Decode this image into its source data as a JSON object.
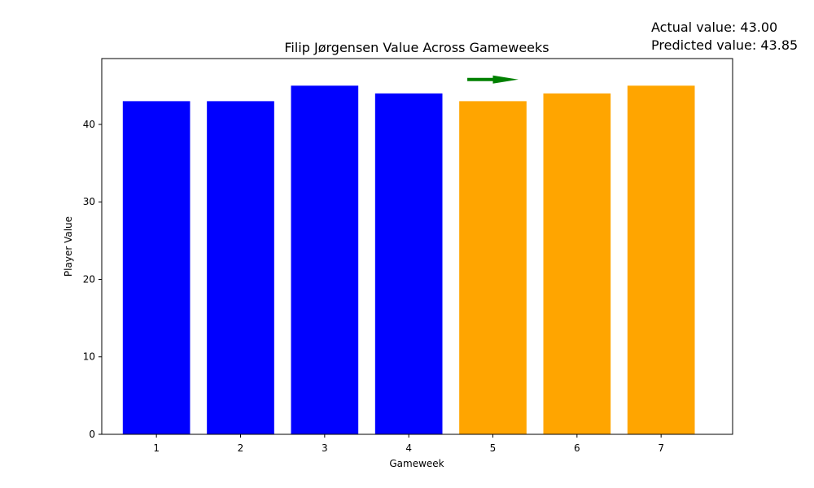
{
  "chart_data": {
    "type": "bar",
    "title": "Filip Jørgensen Value Across Gameweeks",
    "xlabel": "Gameweek",
    "ylabel": "Player Value",
    "categories": [
      "1",
      "2",
      "3",
      "4",
      "5",
      "6",
      "7"
    ],
    "values": [
      43,
      43,
      45,
      44,
      43,
      44,
      45
    ],
    "ylim": [
      0,
      48.5
    ],
    "yticks": [
      0,
      10,
      20,
      30,
      40
    ],
    "grid": false,
    "colors": {
      "actual": "#0000ff",
      "predicted": "#ffa500",
      "arrow": "#008000"
    },
    "bar_groups": [
      "actual",
      "actual",
      "actual",
      "actual",
      "predicted",
      "predicted",
      "predicted"
    ],
    "arrow": {
      "gameweek": 5,
      "direction": "right",
      "y_value": 45.8
    },
    "annotations": {
      "actual": "Actual value: 43.00",
      "predicted": "Predicted value: 43.85"
    }
  }
}
